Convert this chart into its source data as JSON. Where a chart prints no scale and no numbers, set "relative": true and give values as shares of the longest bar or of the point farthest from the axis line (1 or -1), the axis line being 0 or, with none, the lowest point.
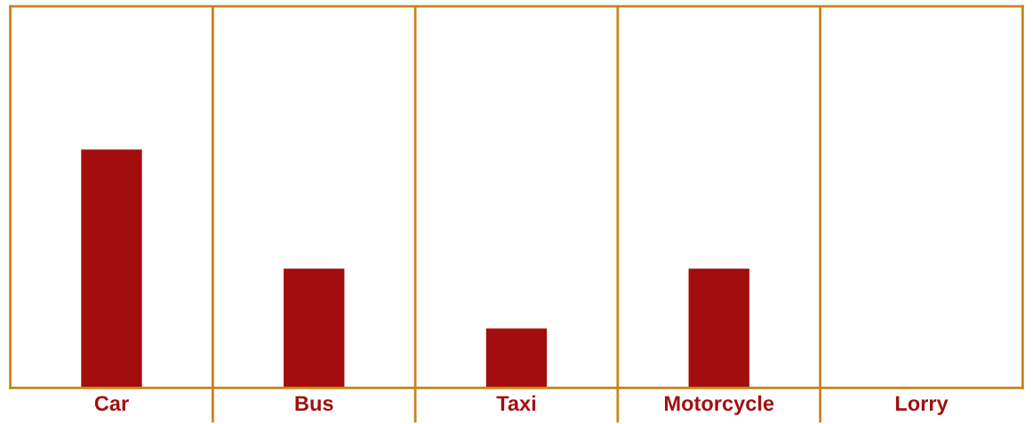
{
  "chart_data": {
    "type": "bar",
    "relative": true,
    "categories": [
      "Car",
      "Bus",
      "Taxi",
      "Motorcycle",
      "Lorry"
    ],
    "values": [
      1,
      0.5,
      0.25,
      0.5,
      0
    ],
    "color": "#a30d0d",
    "grid": "x"
  }
}
